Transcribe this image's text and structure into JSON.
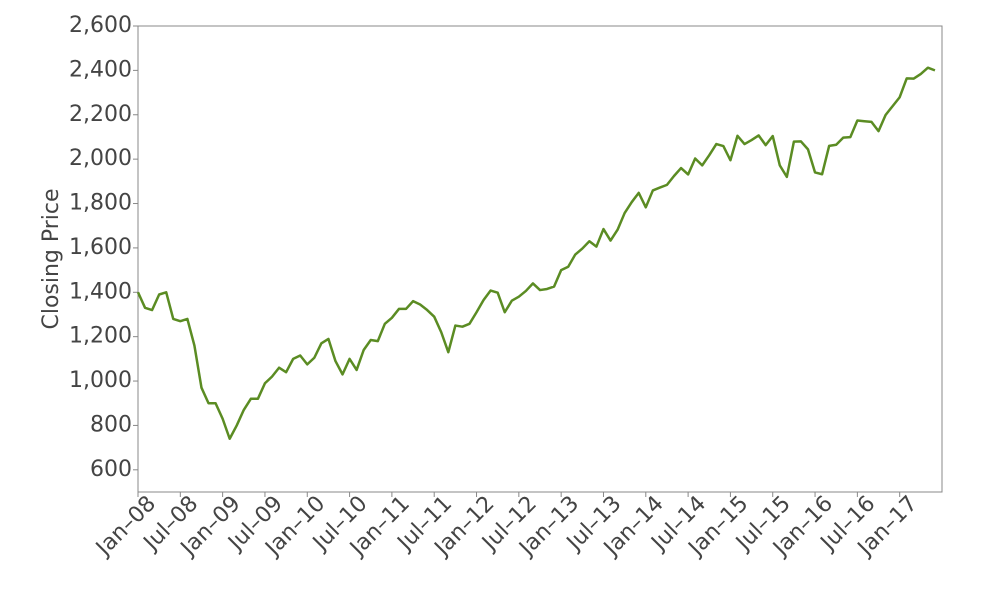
{
  "chart_data": {
    "type": "line",
    "y_label": "Closing Price",
    "color": "#5b8c23",
    "x": [
      "2008-01",
      "2008-02",
      "2008-03",
      "2008-04",
      "2008-05",
      "2008-06",
      "2008-07",
      "2008-08",
      "2008-09",
      "2008-10",
      "2008-11",
      "2008-12",
      "2009-01",
      "2009-02",
      "2009-03",
      "2009-04",
      "2009-05",
      "2009-06",
      "2009-07",
      "2009-08",
      "2009-09",
      "2009-10",
      "2009-11",
      "2009-12",
      "2010-01",
      "2010-02",
      "2010-03",
      "2010-04",
      "2010-05",
      "2010-06",
      "2010-07",
      "2010-08",
      "2010-09",
      "2010-10",
      "2010-11",
      "2010-12",
      "2011-01",
      "2011-02",
      "2011-03",
      "2011-04",
      "2011-05",
      "2011-06",
      "2011-07",
      "2011-08",
      "2011-09",
      "2011-10",
      "2011-11",
      "2011-12",
      "2012-01",
      "2012-02",
      "2012-03",
      "2012-04",
      "2012-05",
      "2012-06",
      "2012-07",
      "2012-08",
      "2012-09",
      "2012-10",
      "2012-11",
      "2012-12",
      "2013-01",
      "2013-02",
      "2013-03",
      "2013-04",
      "2013-05",
      "2013-06",
      "2013-07",
      "2013-08",
      "2013-09",
      "2013-10",
      "2013-11",
      "2013-12",
      "2014-01",
      "2014-02",
      "2014-03",
      "2014-04",
      "2014-05",
      "2014-06",
      "2014-07",
      "2014-08",
      "2014-09",
      "2014-10",
      "2014-11",
      "2014-12",
      "2015-01",
      "2015-02",
      "2015-03",
      "2015-04",
      "2015-05",
      "2015-06",
      "2015-07",
      "2015-08",
      "2015-09",
      "2015-10",
      "2015-11",
      "2015-12",
      "2016-01",
      "2016-02",
      "2016-03",
      "2016-04",
      "2016-05",
      "2016-06",
      "2016-07",
      "2016-08",
      "2016-09",
      "2016-10",
      "2016-11",
      "2016-12",
      "2017-01",
      "2017-02",
      "2017-03",
      "2017-04",
      "2017-05",
      "2017-06"
    ],
    "values": [
      1400,
      1330,
      1320,
      1390,
      1400,
      1280,
      1270,
      1280,
      1160,
      970,
      900,
      900,
      830,
      740,
      800,
      870,
      920,
      920,
      990,
      1020,
      1060,
      1040,
      1100,
      1115,
      1075,
      1105,
      1170,
      1190,
      1090,
      1030,
      1100,
      1050,
      1140,
      1185,
      1180,
      1258,
      1285,
      1325,
      1325,
      1360,
      1345,
      1320,
      1290,
      1220,
      1130,
      1250,
      1245,
      1258,
      1310,
      1365,
      1408,
      1398,
      1310,
      1362,
      1380,
      1406,
      1440,
      1410,
      1415,
      1426,
      1500,
      1515,
      1570,
      1597,
      1630,
      1606,
      1685,
      1633,
      1682,
      1757,
      1806,
      1848,
      1783,
      1859,
      1872,
      1884,
      1924,
      1960,
      1931,
      2003,
      1972,
      2018,
      2068,
      2059,
      1995,
      2105,
      2068,
      2086,
      2107,
      2063,
      2104,
      1972,
      1920,
      2079,
      2080,
      2044,
      1940,
      1932,
      2060,
      2065,
      2097,
      2099,
      2174,
      2171,
      2168,
      2126,
      2199,
      2239,
      2279,
      2364,
      2363,
      2384,
      2412,
      2400
    ],
    "xlim": [
      "2008-01",
      "2017-07"
    ],
    "xticks": [
      {
        "value": "2008-01",
        "label": "Jan–08"
      },
      {
        "value": "2008-07",
        "label": "Jul–08"
      },
      {
        "value": "2009-01",
        "label": "Jan–09"
      },
      {
        "value": "2009-07",
        "label": "Jul–09"
      },
      {
        "value": "2010-01",
        "label": "Jan–10"
      },
      {
        "value": "2010-07",
        "label": "Jul–10"
      },
      {
        "value": "2011-01",
        "label": "Jan–11"
      },
      {
        "value": "2011-07",
        "label": "Jul–11"
      },
      {
        "value": "2012-01",
        "label": "Jan–12"
      },
      {
        "value": "2012-07",
        "label": "Jul–12"
      },
      {
        "value": "2013-01",
        "label": "Jan–13"
      },
      {
        "value": "2013-07",
        "label": "Jul–13"
      },
      {
        "value": "2014-01",
        "label": "Jan–14"
      },
      {
        "value": "2014-07",
        "label": "Jul–14"
      },
      {
        "value": "2015-01",
        "label": "Jan–15"
      },
      {
        "value": "2015-07",
        "label": "Jul–15"
      },
      {
        "value": "2016-01",
        "label": "Jan–16"
      },
      {
        "value": "2016-07",
        "label": "Jul–16"
      },
      {
        "value": "2017-01",
        "label": "Jan–17"
      }
    ],
    "ylim": [
      500,
      2600
    ],
    "yticks": [
      600,
      800,
      {
        "value": 1000,
        "label": "1,000"
      },
      {
        "value": 1200,
        "label": "1,200"
      },
      {
        "value": 1400,
        "label": "1,400"
      },
      {
        "value": 1600,
        "label": "1,600"
      },
      {
        "value": 1800,
        "label": "1,800"
      },
      {
        "value": 2000,
        "label": "2,000"
      },
      {
        "value": 2200,
        "label": "2,200"
      },
      {
        "value": 2400,
        "label": "2,400"
      },
      {
        "value": 2600,
        "label": "2,600"
      }
    ],
    "grid": false
  }
}
